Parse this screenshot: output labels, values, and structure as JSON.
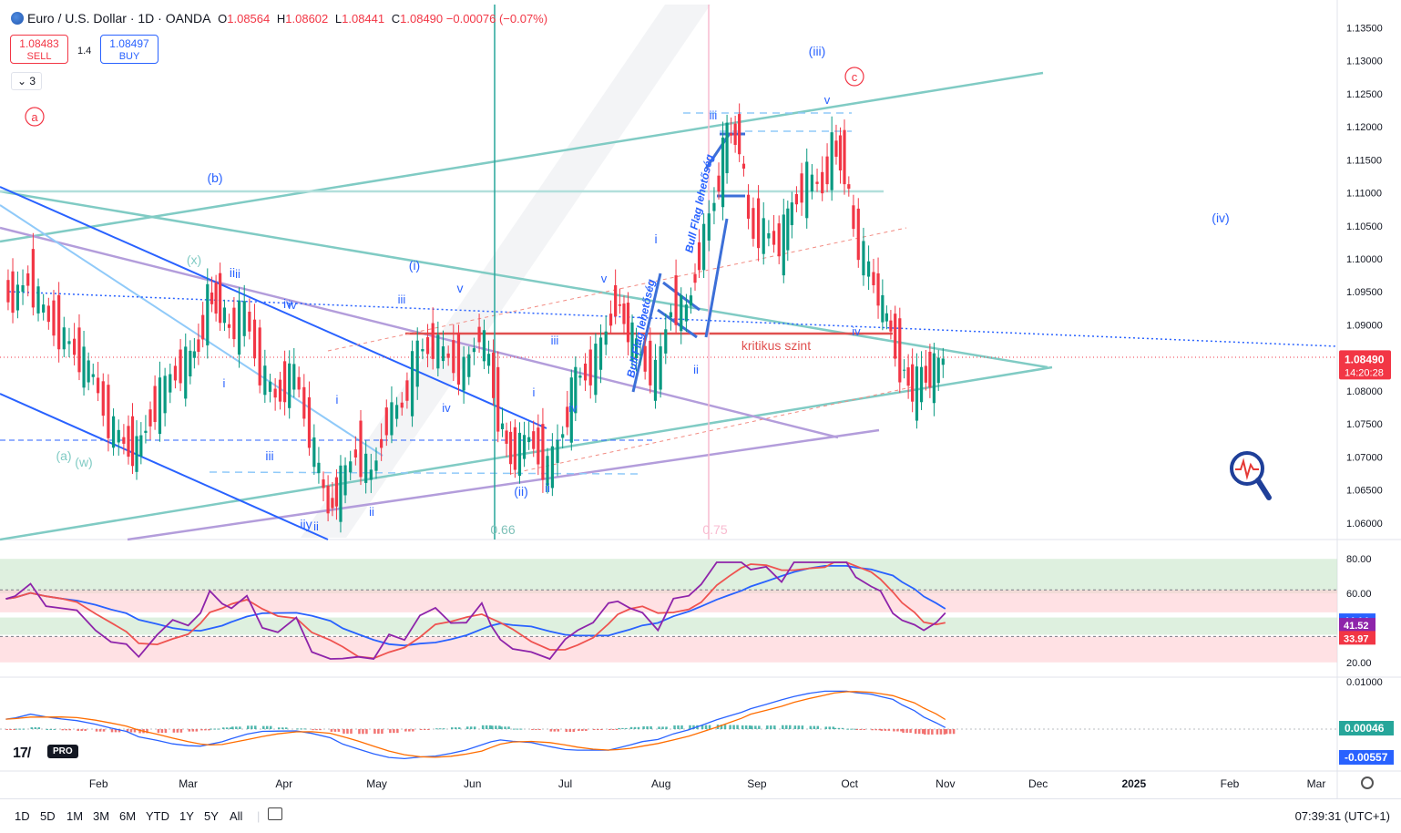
{
  "header": {
    "symbol": "Euro / U.S. Dollar · 1D · OANDA",
    "open_label": "O",
    "open": "1.08564",
    "high_label": "H",
    "high": "1.08602",
    "low_label": "L",
    "low": "1.08441",
    "close_label": "C",
    "close": "1.08490",
    "change": "−0.00076 (−0.07%)"
  },
  "trade": {
    "sell_price": "1.08483",
    "sell_label": "SELL",
    "buy_price": "1.08497",
    "buy_label": "BUY",
    "spread": "1.4"
  },
  "layers_label": "3",
  "colors": {
    "up": "#089981",
    "down": "#f23645",
    "blue": "#2962ff",
    "teal": "#80cbc4",
    "purple": "#b39ddb",
    "red_line": "#e0504f",
    "rsi_line": "#8e24aa",
    "rsi_ma": "#ef5350"
  },
  "chart_data": [
    {
      "type": "candlestick",
      "title": "",
      "x_labels": [
        "Feb",
        "Mar",
        "Apr",
        "May",
        "Jun",
        "Jul",
        "Aug",
        "Sep",
        "Oct",
        "Nov",
        "Dec",
        "2025",
        "Feb",
        "Mar"
      ],
      "y_ticks": [
        1.06,
        1.065,
        1.07,
        1.075,
        1.08,
        1.085,
        1.09,
        1.095,
        1.1,
        1.105,
        1.11,
        1.115,
        1.12,
        1.125,
        1.13,
        1.135
      ],
      "ylim": [
        1.0575,
        1.1385
      ],
      "close_series": [
        [
          "2024-01-02",
          1.095
        ],
        [
          "2024-01-05",
          1.094
        ],
        [
          "2024-01-10",
          1.097
        ],
        [
          "2024-01-15",
          1.092
        ],
        [
          "2024-01-20",
          1.089
        ],
        [
          "2024-01-25",
          1.086
        ],
        [
          "2024-01-31",
          1.082
        ],
        [
          "2024-02-05",
          1.075
        ],
        [
          "2024-02-10",
          1.072
        ],
        [
          "2024-02-14",
          1.071
        ],
        [
          "2024-02-20",
          1.078
        ],
        [
          "2024-02-25",
          1.082
        ],
        [
          "2024-03-01",
          1.084
        ],
        [
          "2024-03-05",
          1.087
        ],
        [
          "2024-03-08",
          1.094
        ],
        [
          "2024-03-12",
          1.093
        ],
        [
          "2024-03-15",
          1.089
        ],
        [
          "2024-03-20",
          1.092
        ],
        [
          "2024-03-25",
          1.083
        ],
        [
          "2024-03-30",
          1.079
        ],
        [
          "2024-04-05",
          1.083
        ],
        [
          "2024-04-10",
          1.073
        ],
        [
          "2024-04-16",
          1.062
        ],
        [
          "2024-04-20",
          1.066
        ],
        [
          "2024-04-25",
          1.071
        ],
        [
          "2024-04-30",
          1.067
        ],
        [
          "2024-05-05",
          1.076
        ],
        [
          "2024-05-10",
          1.078
        ],
        [
          "2024-05-15",
          1.086
        ],
        [
          "2024-05-20",
          1.087
        ],
        [
          "2024-05-25",
          1.085
        ],
        [
          "2024-05-30",
          1.083
        ],
        [
          "2024-06-04",
          1.089
        ],
        [
          "2024-06-07",
          1.084
        ],
        [
          "2024-06-10",
          1.076
        ],
        [
          "2024-06-14",
          1.07
        ],
        [
          "2024-06-20",
          1.073
        ],
        [
          "2024-06-26",
          1.068
        ],
        [
          "2024-07-01",
          1.074
        ],
        [
          "2024-07-05",
          1.082
        ],
        [
          "2024-07-10",
          1.083
        ],
        [
          "2024-07-15",
          1.089
        ],
        [
          "2024-07-18",
          1.094
        ],
        [
          "2024-07-22",
          1.089
        ],
        [
          "2024-07-26",
          1.085
        ],
        [
          "2024-07-31",
          1.082
        ],
        [
          "2024-08-05",
          1.093
        ],
        [
          "2024-08-10",
          1.092
        ],
        [
          "2024-08-14",
          1.101
        ],
        [
          "2024-08-19",
          1.109
        ],
        [
          "2024-08-23",
          1.119
        ],
        [
          "2024-08-27",
          1.118
        ],
        [
          "2024-08-30",
          1.105
        ],
        [
          "2024-09-04",
          1.104
        ],
        [
          "2024-09-09",
          1.102
        ],
        [
          "2024-09-13",
          1.108
        ],
        [
          "2024-09-18",
          1.112
        ],
        [
          "2024-09-23",
          1.111
        ],
        [
          "2024-09-26",
          1.117
        ],
        [
          "2024-09-30",
          1.114
        ],
        [
          "2024-10-03",
          1.104
        ],
        [
          "2024-10-08",
          1.098
        ],
        [
          "2024-10-11",
          1.094
        ],
        [
          "2024-10-15",
          1.089
        ],
        [
          "2024-10-18",
          1.084
        ],
        [
          "2024-10-22",
          1.08
        ],
        [
          "2024-10-25",
          1.082
        ],
        [
          "2024-10-29",
          1.083
        ],
        [
          "2024-11-01",
          1.0849
        ]
      ],
      "annotations": [
        "(a)",
        "(w)",
        "(x)",
        "(b)",
        "(i)",
        "(ii)",
        "(iii)",
        "(iv)",
        "ii",
        "iii",
        "iv",
        "v",
        "i",
        "iiy",
        "a",
        "c",
        "0.66",
        "0.75",
        "kritikus szint",
        "Bull Flag lehetőség",
        "Bull Flag lehetőség"
      ],
      "last_price": "1.08490",
      "countdown": "14:20:28"
    },
    {
      "type": "line",
      "name": "RSI",
      "y_ticks": [
        20,
        60,
        80
      ],
      "ylim": [
        13,
        87
      ],
      "bands": [
        [
          60,
          80
        ],
        [
          20,
          35
        ],
        [
          36,
          46
        ],
        [
          49,
          62
        ]
      ],
      "last_values": [
        "44.14",
        "41.52",
        "33.97"
      ]
    },
    {
      "type": "bar",
      "name": "MACD",
      "y_ticks": [
        "0.01000"
      ],
      "last_values": [
        "0.00046",
        "-0.00557"
      ]
    }
  ],
  "toolbar": {
    "ranges": [
      "1D",
      "5D",
      "1M",
      "3M",
      "6M",
      "YTD",
      "1Y",
      "5Y",
      "All"
    ],
    "clock": "07:39:31 (UTC+1)"
  },
  "icons": {
    "globe": "globe-icon",
    "calendar": "calendar-icon",
    "settings": "gear-icon",
    "search": "magnifier-heartbeat-icon",
    "logo": "tradingview-logo-icon"
  }
}
